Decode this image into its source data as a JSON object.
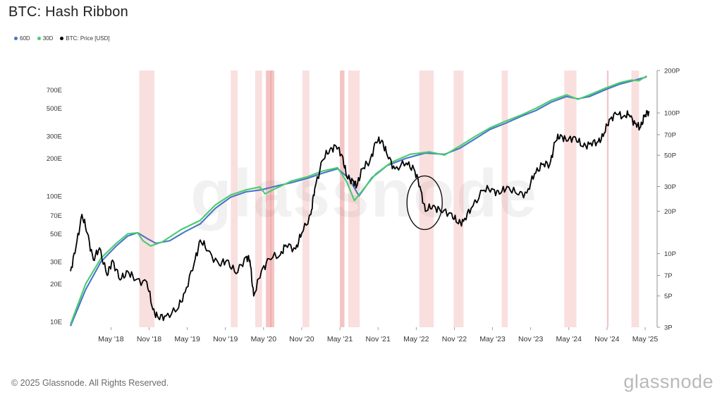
{
  "title": "BTC: Hash Ribbon",
  "legend": [
    {
      "label": "60D",
      "color": "#4a74c9"
    },
    {
      "label": "30D",
      "color": "#47cc6e"
    },
    {
      "label": "BTC: Price [USD]",
      "color": "#000000"
    }
  ],
  "footer": "© 2025 Glassnode. All Rights Reserved.",
  "brand": "glassnode",
  "watermark": "glassnode",
  "chart_data": {
    "type": "line",
    "title": "BTC: Hash Ribbon",
    "x_range": [
      2017.8,
      2025.45
    ],
    "x_ticks": [
      {
        "label": "May '18",
        "t": 2018.33
      },
      {
        "label": "Nov '18",
        "t": 2018.83
      },
      {
        "label": "May '19",
        "t": 2019.33
      },
      {
        "label": "Nov '19",
        "t": 2019.83
      },
      {
        "label": "May '20",
        "t": 2020.33
      },
      {
        "label": "Nov '20",
        "t": 2020.83
      },
      {
        "label": "May '21",
        "t": 2021.33
      },
      {
        "label": "Nov '21",
        "t": 2021.83
      },
      {
        "label": "May '22",
        "t": 2022.33
      },
      {
        "label": "Nov '22",
        "t": 2022.83
      },
      {
        "label": "May '23",
        "t": 2023.33
      },
      {
        "label": "Nov '23",
        "t": 2023.83
      },
      {
        "label": "May '24",
        "t": 2024.33
      },
      {
        "label": "Nov '24",
        "t": 2024.83
      },
      {
        "label": "May '25",
        "t": 2025.33
      }
    ],
    "left_axis": {
      "scale": "log",
      "unit": "E (hash rate)",
      "range": [
        9,
        1000
      ],
      "ticks": [
        {
          "label": "10E",
          "v": 10
        },
        {
          "label": "20E",
          "v": 20
        },
        {
          "label": "30E",
          "v": 30
        },
        {
          "label": "50E",
          "v": 50
        },
        {
          "label": "70E",
          "v": 70
        },
        {
          "label": "100E",
          "v": 100
        },
        {
          "label": "200E",
          "v": 200
        },
        {
          "label": "300E",
          "v": 300
        },
        {
          "label": "500E",
          "v": 500
        },
        {
          "label": "700E",
          "v": 700
        }
      ]
    },
    "right_axis": {
      "scale": "log",
      "unit": "USD (price)",
      "range": [
        3000,
        200000
      ],
      "ticks": [
        {
          "label": "3P",
          "v": 3000
        },
        {
          "label": "5P",
          "v": 5000
        },
        {
          "label": "7P",
          "v": 7000
        },
        {
          "label": "10P",
          "v": 10000
        },
        {
          "label": "20P",
          "v": 20000
        },
        {
          "label": "30P",
          "v": 30000
        },
        {
          "label": "50P",
          "v": 50000
        },
        {
          "label": "70P",
          "v": 70000
        },
        {
          "label": "100P",
          "v": 100000
        },
        {
          "label": "200P",
          "v": 200000
        }
      ]
    },
    "capitulation_bands": [
      [
        2018.7,
        2018.9
      ],
      [
        2019.9,
        2019.99
      ],
      [
        2020.22,
        2020.31
      ],
      [
        2020.36,
        2020.43
      ],
      [
        2020.42,
        2020.47
      ],
      [
        2020.84,
        2020.93
      ],
      [
        2021.33,
        2021.39
      ],
      [
        2021.44,
        2021.59
      ],
      [
        2022.37,
        2022.56
      ],
      [
        2022.82,
        2022.95
      ],
      [
        2023.45,
        2023.53
      ],
      [
        2024.27,
        2024.43
      ],
      [
        2024.83,
        2024.85
      ],
      [
        2025.15,
        2025.25
      ]
    ],
    "series": [
      {
        "name": "60D",
        "axis": "left",
        "color": "#4a74c9",
        "points": [
          [
            2017.8,
            9.2
          ],
          [
            2018.0,
            18
          ],
          [
            2018.2,
            30
          ],
          [
            2018.4,
            40
          ],
          [
            2018.55,
            48
          ],
          [
            2018.68,
            51
          ],
          [
            2018.8,
            46
          ],
          [
            2018.92,
            42
          ],
          [
            2019.1,
            44
          ],
          [
            2019.3,
            52
          ],
          [
            2019.5,
            60
          ],
          [
            2019.7,
            80
          ],
          [
            2019.9,
            98
          ],
          [
            2020.1,
            108
          ],
          [
            2020.3,
            112
          ],
          [
            2020.5,
            120
          ],
          [
            2020.7,
            128
          ],
          [
            2020.9,
            138
          ],
          [
            2021.1,
            152
          ],
          [
            2021.3,
            165
          ],
          [
            2021.45,
            138
          ],
          [
            2021.58,
            100
          ],
          [
            2021.75,
            140
          ],
          [
            2021.95,
            175
          ],
          [
            2022.2,
            200
          ],
          [
            2022.45,
            220
          ],
          [
            2022.7,
            215
          ],
          [
            2022.9,
            240
          ],
          [
            2023.1,
            285
          ],
          [
            2023.3,
            340
          ],
          [
            2023.5,
            380
          ],
          [
            2023.7,
            430
          ],
          [
            2023.9,
            480
          ],
          [
            2024.1,
            560
          ],
          [
            2024.3,
            620
          ],
          [
            2024.45,
            595
          ],
          [
            2024.6,
            620
          ],
          [
            2024.8,
            700
          ],
          [
            2025.0,
            780
          ],
          [
            2025.2,
            840
          ],
          [
            2025.35,
            890
          ]
        ]
      },
      {
        "name": "30D",
        "axis": "left",
        "color": "#47cc6e",
        "points": [
          [
            2017.8,
            9.5
          ],
          [
            2018.0,
            20
          ],
          [
            2018.2,
            32
          ],
          [
            2018.4,
            42
          ],
          [
            2018.55,
            50
          ],
          [
            2018.68,
            51
          ],
          [
            2018.75,
            44
          ],
          [
            2018.85,
            40
          ],
          [
            2019.0,
            43
          ],
          [
            2019.25,
            54
          ],
          [
            2019.5,
            64
          ],
          [
            2019.7,
            85
          ],
          [
            2019.9,
            102
          ],
          [
            2020.1,
            112
          ],
          [
            2020.28,
            118
          ],
          [
            2020.35,
            104
          ],
          [
            2020.45,
            112
          ],
          [
            2020.7,
            132
          ],
          [
            2020.9,
            142
          ],
          [
            2021.1,
            158
          ],
          [
            2021.3,
            168
          ],
          [
            2021.42,
            130
          ],
          [
            2021.52,
            92
          ],
          [
            2021.62,
            110
          ],
          [
            2021.8,
            150
          ],
          [
            2022.0,
            185
          ],
          [
            2022.25,
            215
          ],
          [
            2022.5,
            225
          ],
          [
            2022.7,
            212
          ],
          [
            2022.9,
            250
          ],
          [
            2023.1,
            298
          ],
          [
            2023.3,
            350
          ],
          [
            2023.5,
            395
          ],
          [
            2023.7,
            440
          ],
          [
            2023.9,
            500
          ],
          [
            2024.1,
            580
          ],
          [
            2024.3,
            640
          ],
          [
            2024.45,
            590
          ],
          [
            2024.6,
            640
          ],
          [
            2024.8,
            720
          ],
          [
            2025.0,
            800
          ],
          [
            2025.15,
            840
          ],
          [
            2025.25,
            830
          ],
          [
            2025.35,
            905
          ]
        ]
      },
      {
        "name": "BTC: Price [USD]",
        "axis": "right",
        "color": "#000000",
        "points": [
          [
            2017.8,
            7500
          ],
          [
            2017.87,
            11000
          ],
          [
            2017.95,
            19000
          ],
          [
            2018.02,
            14000
          ],
          [
            2018.1,
            9000
          ],
          [
            2018.18,
            11000
          ],
          [
            2018.28,
            7000
          ],
          [
            2018.35,
            9000
          ],
          [
            2018.45,
            6500
          ],
          [
            2018.55,
            7500
          ],
          [
            2018.65,
            6500
          ],
          [
            2018.8,
            6300
          ],
          [
            2018.88,
            4000
          ],
          [
            2018.95,
            3500
          ],
          [
            2019.05,
            3600
          ],
          [
            2019.2,
            4000
          ],
          [
            2019.3,
            5300
          ],
          [
            2019.42,
            8500
          ],
          [
            2019.5,
            12500
          ],
          [
            2019.6,
            10500
          ],
          [
            2019.75,
            8300
          ],
          [
            2019.85,
            9000
          ],
          [
            2019.97,
            7200
          ],
          [
            2020.1,
            9500
          ],
          [
            2020.15,
            9000
          ],
          [
            2020.2,
            5000
          ],
          [
            2020.3,
            7500
          ],
          [
            2020.4,
            9200
          ],
          [
            2020.55,
            9800
          ],
          [
            2020.62,
            11500
          ],
          [
            2020.75,
            10800
          ],
          [
            2020.83,
            14000
          ],
          [
            2020.95,
            19000
          ],
          [
            2021.0,
            29000
          ],
          [
            2021.1,
            46000
          ],
          [
            2021.2,
            55000
          ],
          [
            2021.28,
            58000
          ],
          [
            2021.36,
            50000
          ],
          [
            2021.42,
            35000
          ],
          [
            2021.5,
            33000
          ],
          [
            2021.55,
            30000
          ],
          [
            2021.62,
            40000
          ],
          [
            2021.72,
            45000
          ],
          [
            2021.8,
            62000
          ],
          [
            2021.88,
            64000
          ],
          [
            2021.95,
            50000
          ],
          [
            2022.05,
            40000
          ],
          [
            2022.2,
            44000
          ],
          [
            2022.3,
            40000
          ],
          [
            2022.38,
            30000
          ],
          [
            2022.45,
            20000
          ],
          [
            2022.55,
            22000
          ],
          [
            2022.65,
            20000
          ],
          [
            2022.78,
            19500
          ],
          [
            2022.87,
            16500
          ],
          [
            2022.95,
            17000
          ],
          [
            2023.05,
            21000
          ],
          [
            2023.2,
            28000
          ],
          [
            2023.32,
            29000
          ],
          [
            2023.42,
            26500
          ],
          [
            2023.52,
            30000
          ],
          [
            2023.65,
            26500
          ],
          [
            2023.78,
            27000
          ],
          [
            2023.88,
            37000
          ],
          [
            2023.98,
            43000
          ],
          [
            2024.08,
            43000
          ],
          [
            2024.15,
            62000
          ],
          [
            2024.22,
            70000
          ],
          [
            2024.3,
            63000
          ],
          [
            2024.4,
            68000
          ],
          [
            2024.5,
            58000
          ],
          [
            2024.6,
            60000
          ],
          [
            2024.7,
            62000
          ],
          [
            2024.78,
            68000
          ],
          [
            2024.86,
            90000
          ],
          [
            2024.95,
            98000
          ],
          [
            2025.05,
            95000
          ],
          [
            2025.12,
            97000
          ],
          [
            2025.2,
            84000
          ],
          [
            2025.26,
            78000
          ],
          [
            2025.32,
            94000
          ],
          [
            2025.38,
            103000
          ]
        ]
      }
    ],
    "annotation": {
      "type": "circle",
      "around": "May '22",
      "t": 2022.44,
      "v": 23000
    }
  }
}
